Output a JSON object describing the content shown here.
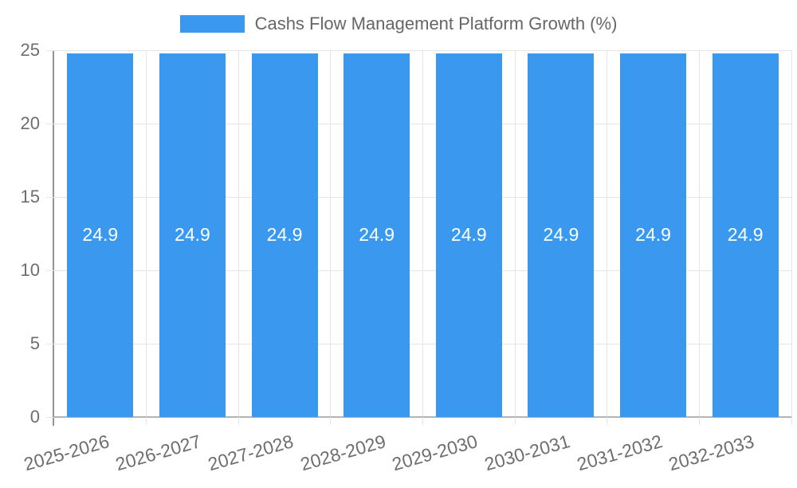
{
  "chart_data": {
    "type": "bar",
    "title": "Cashs Flow Management Platform Growth (%)",
    "legend_entries": [
      "Cashs Flow Management Platform Growth (%)"
    ],
    "legend_position": "top",
    "categories": [
      "2025-2026",
      "2026-2027",
      "2027-2028",
      "2028-2029",
      "2029-2030",
      "2030-2031",
      "2031-2032",
      "2032-2033"
    ],
    "values": [
      24.9,
      24.9,
      24.9,
      24.9,
      24.9,
      24.9,
      24.9,
      24.9
    ],
    "value_labels": [
      "24.9",
      "24.9",
      "24.9",
      "24.9",
      "24.9",
      "24.9",
      "24.9",
      "24.9"
    ],
    "xlabel": "",
    "ylabel": "",
    "ylim": [
      0,
      25
    ],
    "yticks": [
      0,
      5,
      10,
      15,
      20,
      25
    ],
    "grid": true,
    "colors": {
      "bar": "#3a99ee",
      "grid": "#e5e5e5",
      "axis_line": "#949494",
      "baseline": "#b4b4b4",
      "tick_text": "#6e6e6e",
      "legend_text": "#666666",
      "bar_label": "#ffffff"
    }
  }
}
